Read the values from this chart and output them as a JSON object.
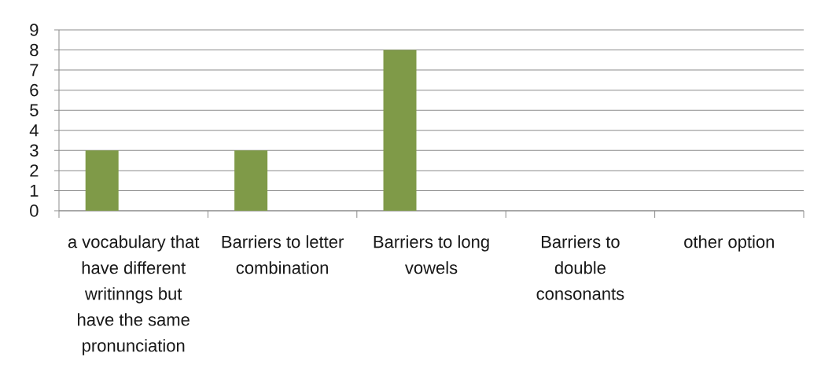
{
  "chart_data": {
    "type": "bar",
    "categories": [
      "a vocabulary that have different writinngs but have the same pronunciation",
      "Barriers to letter combination",
      "Barriers to long vowels",
      "Barriers to double consonants",
      "other option"
    ],
    "values": [
      3,
      3,
      8,
      0,
      0
    ],
    "color": "#7f9a48",
    "ylim": [
      0,
      9
    ],
    "yticks": [
      0,
      1,
      2,
      3,
      4,
      5,
      6,
      7,
      8,
      9
    ],
    "grid": "y"
  }
}
